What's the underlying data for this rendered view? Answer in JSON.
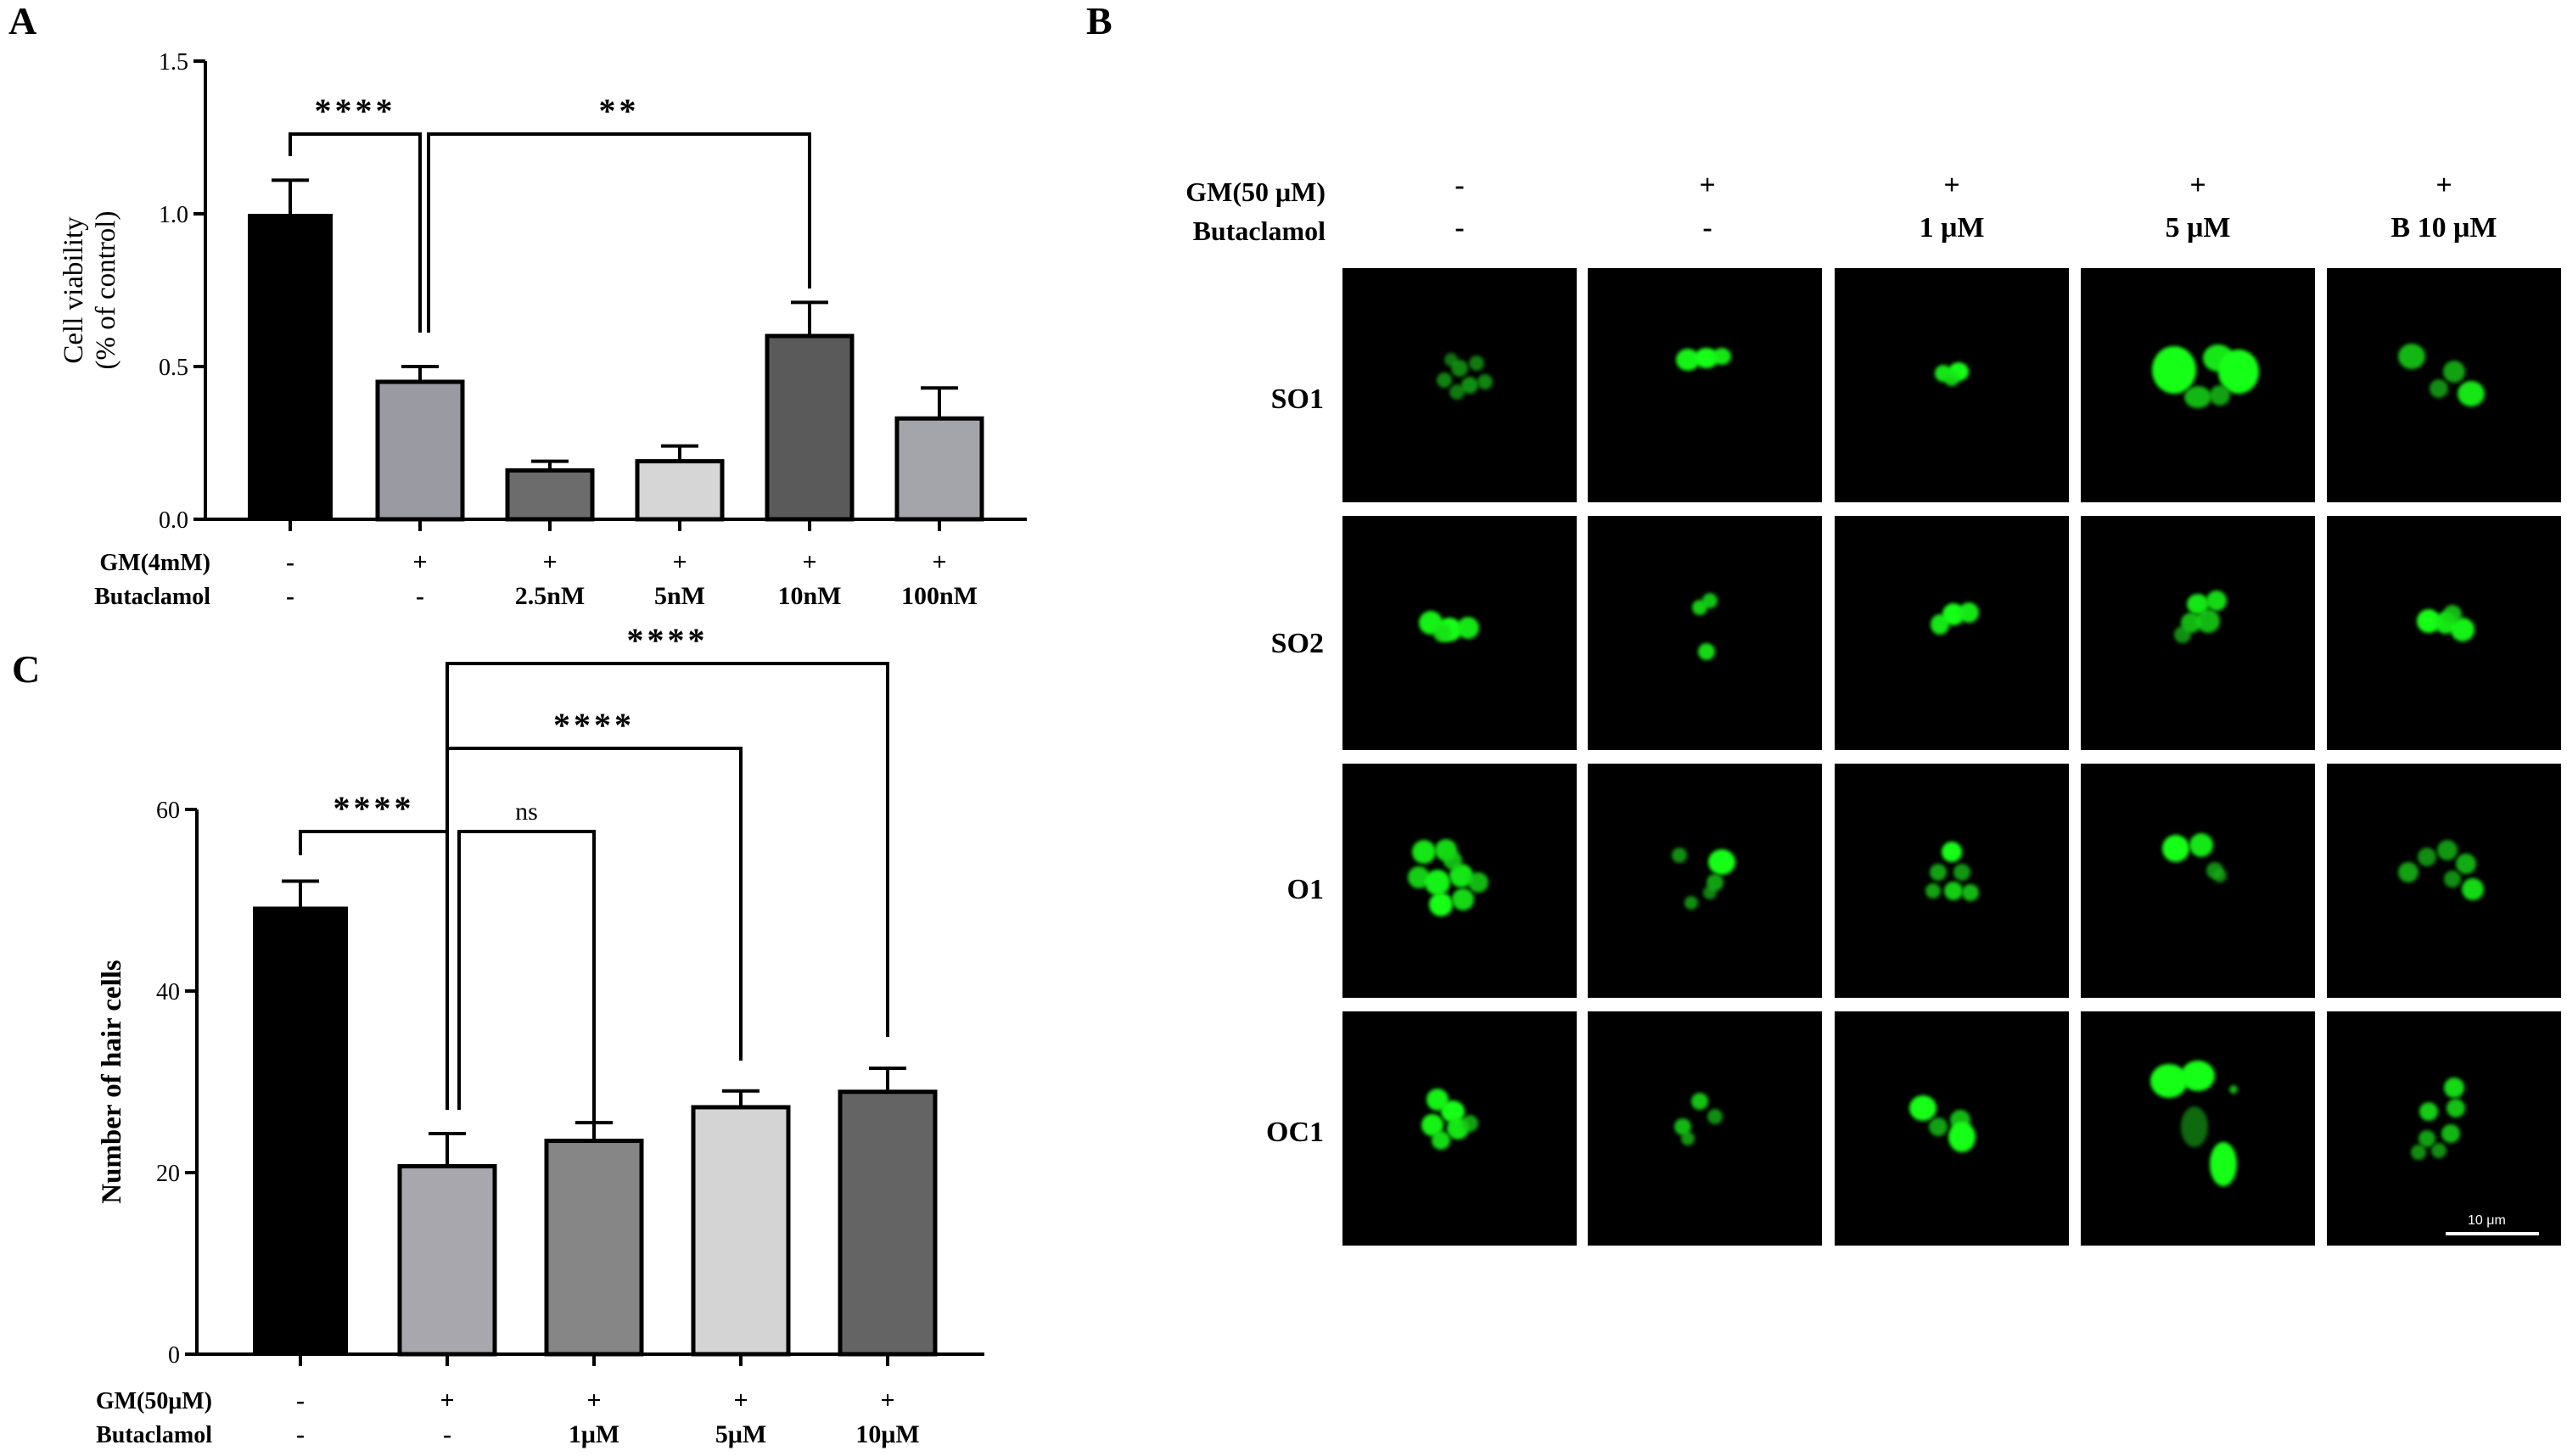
{
  "panel_a": {
    "letter": "A",
    "chart_data": {
      "type": "bar",
      "ylabel_lines": [
        "Cell viability",
        "(% of control)"
      ],
      "ylim": [
        0,
        1.5
      ],
      "yticks": [
        "0.0",
        "0.5",
        "1.0",
        "1.5"
      ],
      "categories": [
        "1",
        "2",
        "3",
        "4",
        "5",
        "6"
      ],
      "values": [
        1.0,
        0.45,
        0.16,
        0.19,
        0.6,
        0.33
      ],
      "errors": [
        0.11,
        0.05,
        0.03,
        0.05,
        0.11,
        0.1
      ],
      "colors": [
        "#000000",
        "#9a9aa2",
        "#6c6c6c",
        "#d6d6d6",
        "#5a5a5a",
        "#a4a4ab"
      ],
      "row_labels": [
        "GM(4mM)",
        "Butaclamol"
      ],
      "row1": [
        "-",
        "+",
        "+",
        "+",
        "+",
        "+"
      ],
      "row2": [
        "-",
        "-",
        "2.5nM",
        "5nM",
        "10nM",
        "100nM"
      ],
      "significance": [
        {
          "from": 0,
          "to": 1,
          "label": "****"
        },
        {
          "from": 1,
          "to": 4,
          "label": "**"
        }
      ]
    }
  },
  "panel_b": {
    "letter": "B",
    "header_labels": [
      "GM(50 μM)",
      "Butaclamol"
    ],
    "gm_row": [
      "-",
      "+",
      "+",
      "+",
      "+"
    ],
    "butaclamol_row": [
      "-",
      "-",
      "1 μM",
      "5 μM",
      "B 10 μM"
    ],
    "row_labels": [
      "SO1",
      "SO2",
      "O1",
      "OC1"
    ],
    "scale_bar": "10 μm"
  },
  "panel_c": {
    "letter": "C",
    "chart_data": {
      "type": "bar",
      "ylabel": "Number of hair cells",
      "ylim": [
        0,
        60
      ],
      "yticks": [
        "0",
        "20",
        "40",
        "60"
      ],
      "categories": [
        "1",
        "2",
        "3",
        "4",
        "5"
      ],
      "values": [
        49.3,
        20.7,
        23.5,
        27.2,
        28.9
      ],
      "errors": [
        2.8,
        3.6,
        2.0,
        1.8,
        2.6
      ],
      "colors": [
        "#000000",
        "#a7a7ad",
        "#868686",
        "#d4d4d4",
        "#646464"
      ],
      "row_labels": [
        "GM(50μM)",
        "Butaclamol"
      ],
      "row1": [
        "-",
        "+",
        "+",
        "+",
        "+"
      ],
      "row2": [
        "-",
        "-",
        "1μM",
        "5μM",
        "10μM"
      ],
      "significance": [
        {
          "from": 0,
          "to": 1,
          "label": "****"
        },
        {
          "from": 1,
          "to": 2,
          "label": "ns"
        },
        {
          "from": 1,
          "to": 3,
          "label": "****"
        },
        {
          "from": 1,
          "to": 4,
          "label": "****"
        }
      ]
    }
  }
}
